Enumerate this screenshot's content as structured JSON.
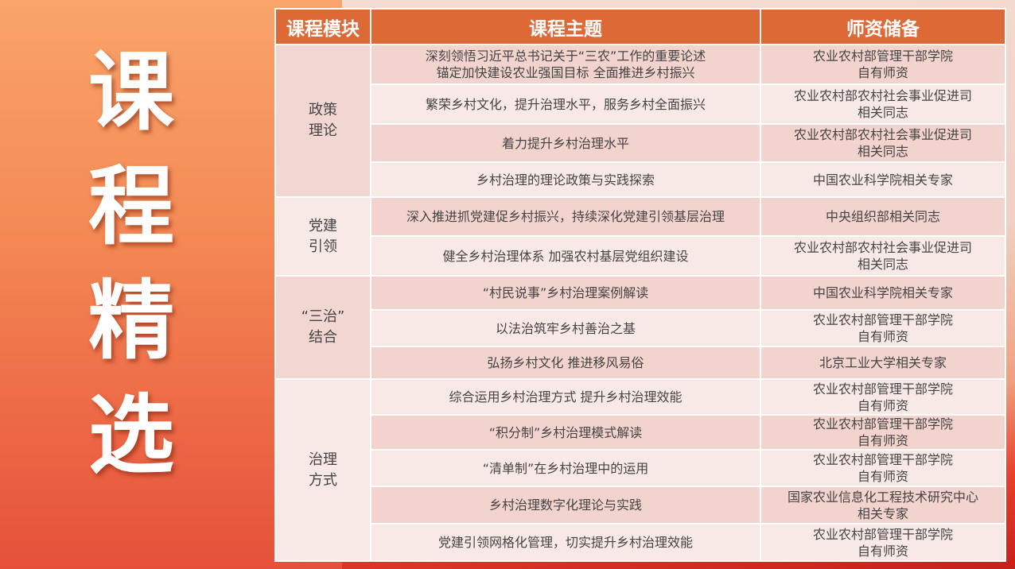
{
  "title_chars": [
    "课",
    "程",
    "精",
    "选"
  ],
  "headers": [
    "课程模块",
    "课程主题",
    "师资储备"
  ],
  "groups": [
    {
      "module": [
        "政策",
        "理论"
      ],
      "rows": [
        {
          "topic": [
            "深刻领悟习近平总书记关于“三农”工作的重要论述",
            "锚定加快建设农业强国目标 全面推进乡村振兴"
          ],
          "faculty": [
            "农业农村部管理干部学院",
            "自有师资"
          ]
        },
        {
          "topic": [
            "繁荣乡村文化，提升治理水平，服务乡村全面振兴"
          ],
          "faculty": [
            "农业农村部农村社会事业促进司",
            "相关同志"
          ]
        },
        {
          "topic": [
            "着力提升乡村治理水平"
          ],
          "faculty": [
            "农业农村部农村社会事业促进司",
            "相关同志"
          ]
        },
        {
          "topic": [
            "乡村治理的理论政策与实践探索"
          ],
          "faculty": [
            "中国农业科学院相关专家"
          ]
        }
      ]
    },
    {
      "module": [
        "党建",
        "引领"
      ],
      "rows": [
        {
          "topic": [
            "深入推进抓党建促乡村振兴，持续深化党建引领基层治理"
          ],
          "faculty": [
            "中央组织部相关同志"
          ]
        },
        {
          "topic": [
            "健全乡村治理体系 加强农村基层党组织建设"
          ],
          "faculty": [
            "农业农村部农村社会事业促进司",
            "相关同志"
          ]
        }
      ]
    },
    {
      "module": [
        "“三治”",
        "结合"
      ],
      "rows": [
        {
          "topic": [
            "“村民说事”乡村治理案例解读"
          ],
          "faculty": [
            "中国农业科学院相关专家"
          ]
        },
        {
          "topic": [
            "以法治筑牢乡村善治之基"
          ],
          "faculty": [
            "农业农村部管理干部学院",
            "自有师资"
          ]
        },
        {
          "topic": [
            "弘扬乡村文化 推进移风易俗"
          ],
          "faculty": [
            "北京工业大学相关专家"
          ]
        }
      ]
    },
    {
      "module": [
        "治理",
        "方式"
      ],
      "rows": [
        {
          "topic": [
            "综合运用乡村治理方式 提升乡村治理效能"
          ],
          "faculty": [
            "农业农村部管理干部学院",
            "自有师资"
          ]
        },
        {
          "topic": [
            "“积分制”乡村治理模式解读"
          ],
          "faculty": [
            "农业农村部管理干部学院",
            "自有师资"
          ]
        },
        {
          "topic": [
            "“清单制”在乡村治理中的运用"
          ],
          "faculty": [
            "农业农村部管理干部学院",
            "自有师资"
          ]
        },
        {
          "topic": [
            "乡村治理数字化理论与实践"
          ],
          "faculty": [
            "国家农业信息化工程技术研究中心",
            "相关专家"
          ]
        },
        {
          "topic": [
            "党建引领网格化管理，切实提升乡村治理效能"
          ],
          "faculty": [
            "农业农村部管理干部学院",
            "自有师资"
          ]
        }
      ]
    }
  ],
  "colors": {
    "header": "#dd6a36",
    "row_dark": "#f2d3ce",
    "row_light": "#f8e9e6"
  }
}
